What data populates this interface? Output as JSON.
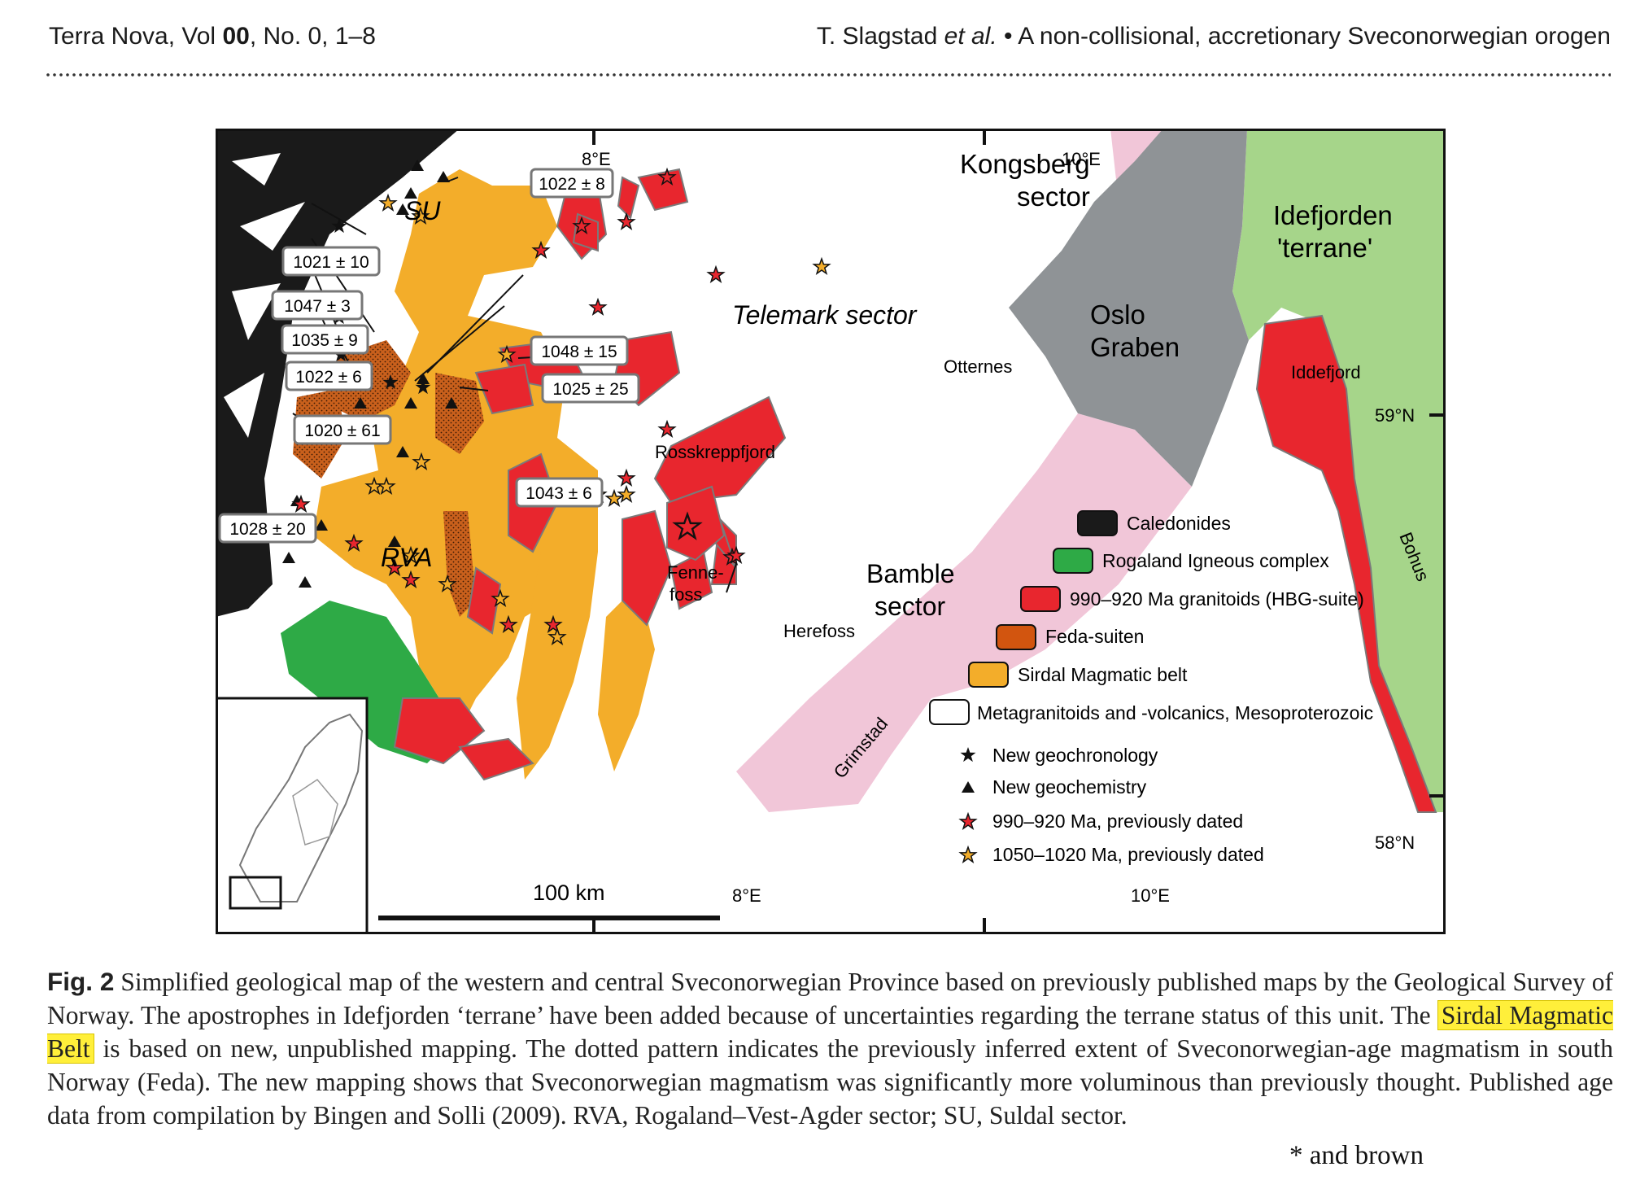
{
  "header": {
    "journal_prefix": "Terra Nova, Vol ",
    "volume": "00",
    "journal_suffix": ", No. 0, 1–8",
    "authors_pre": "T. Slagstad ",
    "authors_etal": "et al.",
    "bullet": "•",
    "short_title": "A non-collisional, accretionary Sveconorwegian orogen"
  },
  "map": {
    "region_labels": {
      "kongsberg": "Kongsberg",
      "kongsberg2": "sector",
      "idefjorden": "Idefjorden",
      "idefjorden2": "'terrane'",
      "oslo": "Oslo",
      "oslo2": "Graben",
      "telemark": "Telemark sector",
      "bamble": "Bamble",
      "bamble2": "sector",
      "su": "SU",
      "rva": "RVA",
      "iddefjord": "Iddefjord",
      "bohus": "Bohus"
    },
    "place_labels": {
      "otternes": "Otternes",
      "rosskreppfjord": "Rosskreppfjord",
      "fennefoss1": "Fenne-",
      "fennefoss2": "foss",
      "herefoss": "Herefoss",
      "grimstad": "Grimstad"
    },
    "grid_labels": {
      "e8_top": "8°E",
      "e10_top": "10°E",
      "e8_bottom": "8°E",
      "e10_bottom": "10°E",
      "n59": "59°N",
      "n58": "58°N"
    },
    "scale_label": "100 km",
    "age_boxes": [
      "1022 ± 8",
      "1021 ± 10",
      "1047 ± 3",
      "1035 ± 9",
      "1022 ± 6",
      "1048 ± 15",
      "1025 ± 25",
      "1020 ± 61",
      "1043 ± 6",
      "1028 ± 20"
    ],
    "legend": {
      "units": [
        {
          "label": "Caledonides",
          "color": "#1a1a1a"
        },
        {
          "label": "Rogaland Igneous complex",
          "color": "#2eaa46"
        },
        {
          "label": "990–920 Ma granitoids (HBG-suite)",
          "color": "#e8262e"
        },
        {
          "label": "Feda-suiten",
          "color": "#d2550f"
        },
        {
          "label": "Sirdal Magmatic belt",
          "color": "#f3ad2a"
        },
        {
          "label": "Metagranitoids and -volcanics, Mesoproterozoic",
          "color": "#ffffff"
        }
      ],
      "symbols": [
        {
          "label": "New geochronology",
          "icon": "black-star"
        },
        {
          "label": "New geochemistry",
          "icon": "black-triangle"
        },
        {
          "label": "990–920 Ma, previously dated",
          "icon": "red-star"
        },
        {
          "label": "1050–1020 Ma, previously dated",
          "icon": "orange-star"
        }
      ]
    },
    "colors": {
      "pink": "#f1c6d8",
      "grey": "#8f9396",
      "green_light": "#a6d58a",
      "red": "#e8262e",
      "orange": "#f3ad2a",
      "brown": "#c9601c"
    }
  },
  "caption": {
    "label": "Fig. 2",
    "text_before": "Simplified geological map of the western and central Sveconorwegian Province based on previously published maps by the Geological Survey of Norway. The apostrophes in Idefjorden ‘terrane’ have been added because of uncertainties regarding the terrane status of this unit. The ",
    "highlight": "Sirdal Magmatic Belt",
    "text_after": " is based on new, unpublished mapping. The dotted pattern indicates the previously inferred extent of Sveconorwegian-age magmatism in south Norway (Feda). The new mapping shows that Sveconorwegian magmatism was significantly more voluminous than previously thought. Published age data from compilation by Bingen and Solli (2009). RVA, Rogaland–Vest-Agder sector; SU, Suldal sector."
  },
  "annotation": {
    "note": "* and brown"
  }
}
